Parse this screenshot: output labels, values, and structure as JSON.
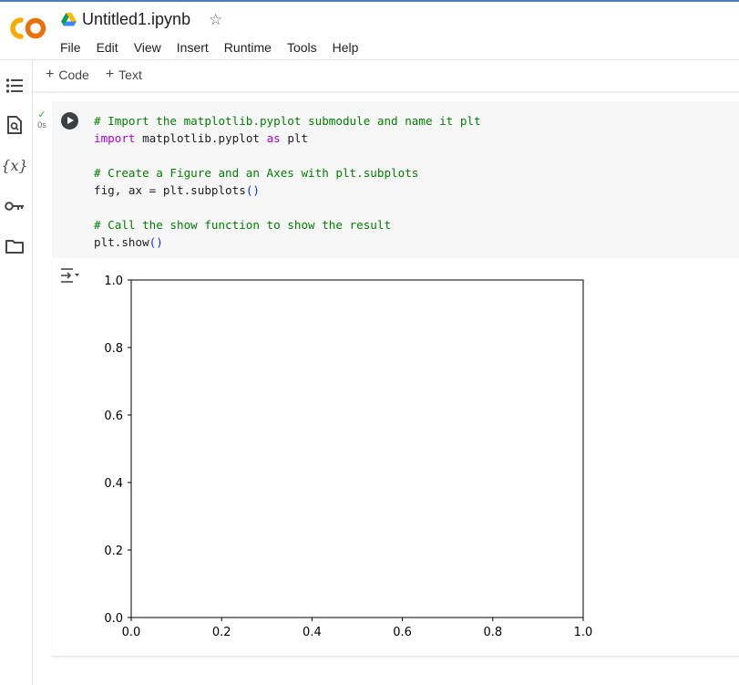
{
  "header": {
    "logo_text": "CO",
    "title": "Untitled1.ipynb",
    "star_icon": "star-outline-icon"
  },
  "menu": [
    "File",
    "Edit",
    "View",
    "Insert",
    "Runtime",
    "Tools",
    "Help"
  ],
  "toolbar": {
    "code_label": "Code",
    "text_label": "Text"
  },
  "sidebar": [
    "toc-icon",
    "find-icon",
    "variables-icon",
    "secrets-key-icon",
    "folder-icon"
  ],
  "cell": {
    "status": "0s",
    "code_lines": [
      [
        {
          "t": "# Import the matplotlib.pyplot submodule and name it plt",
          "c": "cm"
        }
      ],
      [
        {
          "t": "import",
          "c": "kw"
        },
        {
          "t": " matplotlib.pyplot ",
          "c": ""
        },
        {
          "t": "as",
          "c": "kw"
        },
        {
          "t": " plt",
          "c": ""
        }
      ],
      [],
      [
        {
          "t": "# Create a Figure and an Axes with plt.subplots",
          "c": "cm"
        }
      ],
      [
        {
          "t": "fig, ax = plt.subplots",
          "c": ""
        },
        {
          "t": "()",
          "c": "par"
        }
      ],
      [],
      [
        {
          "t": "# Call the show function to show the result",
          "c": "cm"
        }
      ],
      [
        {
          "t": "plt.show",
          "c": ""
        },
        {
          "t": "()",
          "c": "par"
        }
      ]
    ]
  },
  "chart_data": {
    "type": "line",
    "title": "",
    "xlabel": "",
    "ylabel": "",
    "xlim": [
      0,
      1
    ],
    "ylim": [
      0,
      1
    ],
    "xticks": [
      "0.0",
      "0.2",
      "0.4",
      "0.6",
      "0.8",
      "1.0"
    ],
    "yticks": [
      "0.0",
      "0.2",
      "0.4",
      "0.6",
      "0.8",
      "1.0"
    ],
    "series": [],
    "grid": false
  }
}
